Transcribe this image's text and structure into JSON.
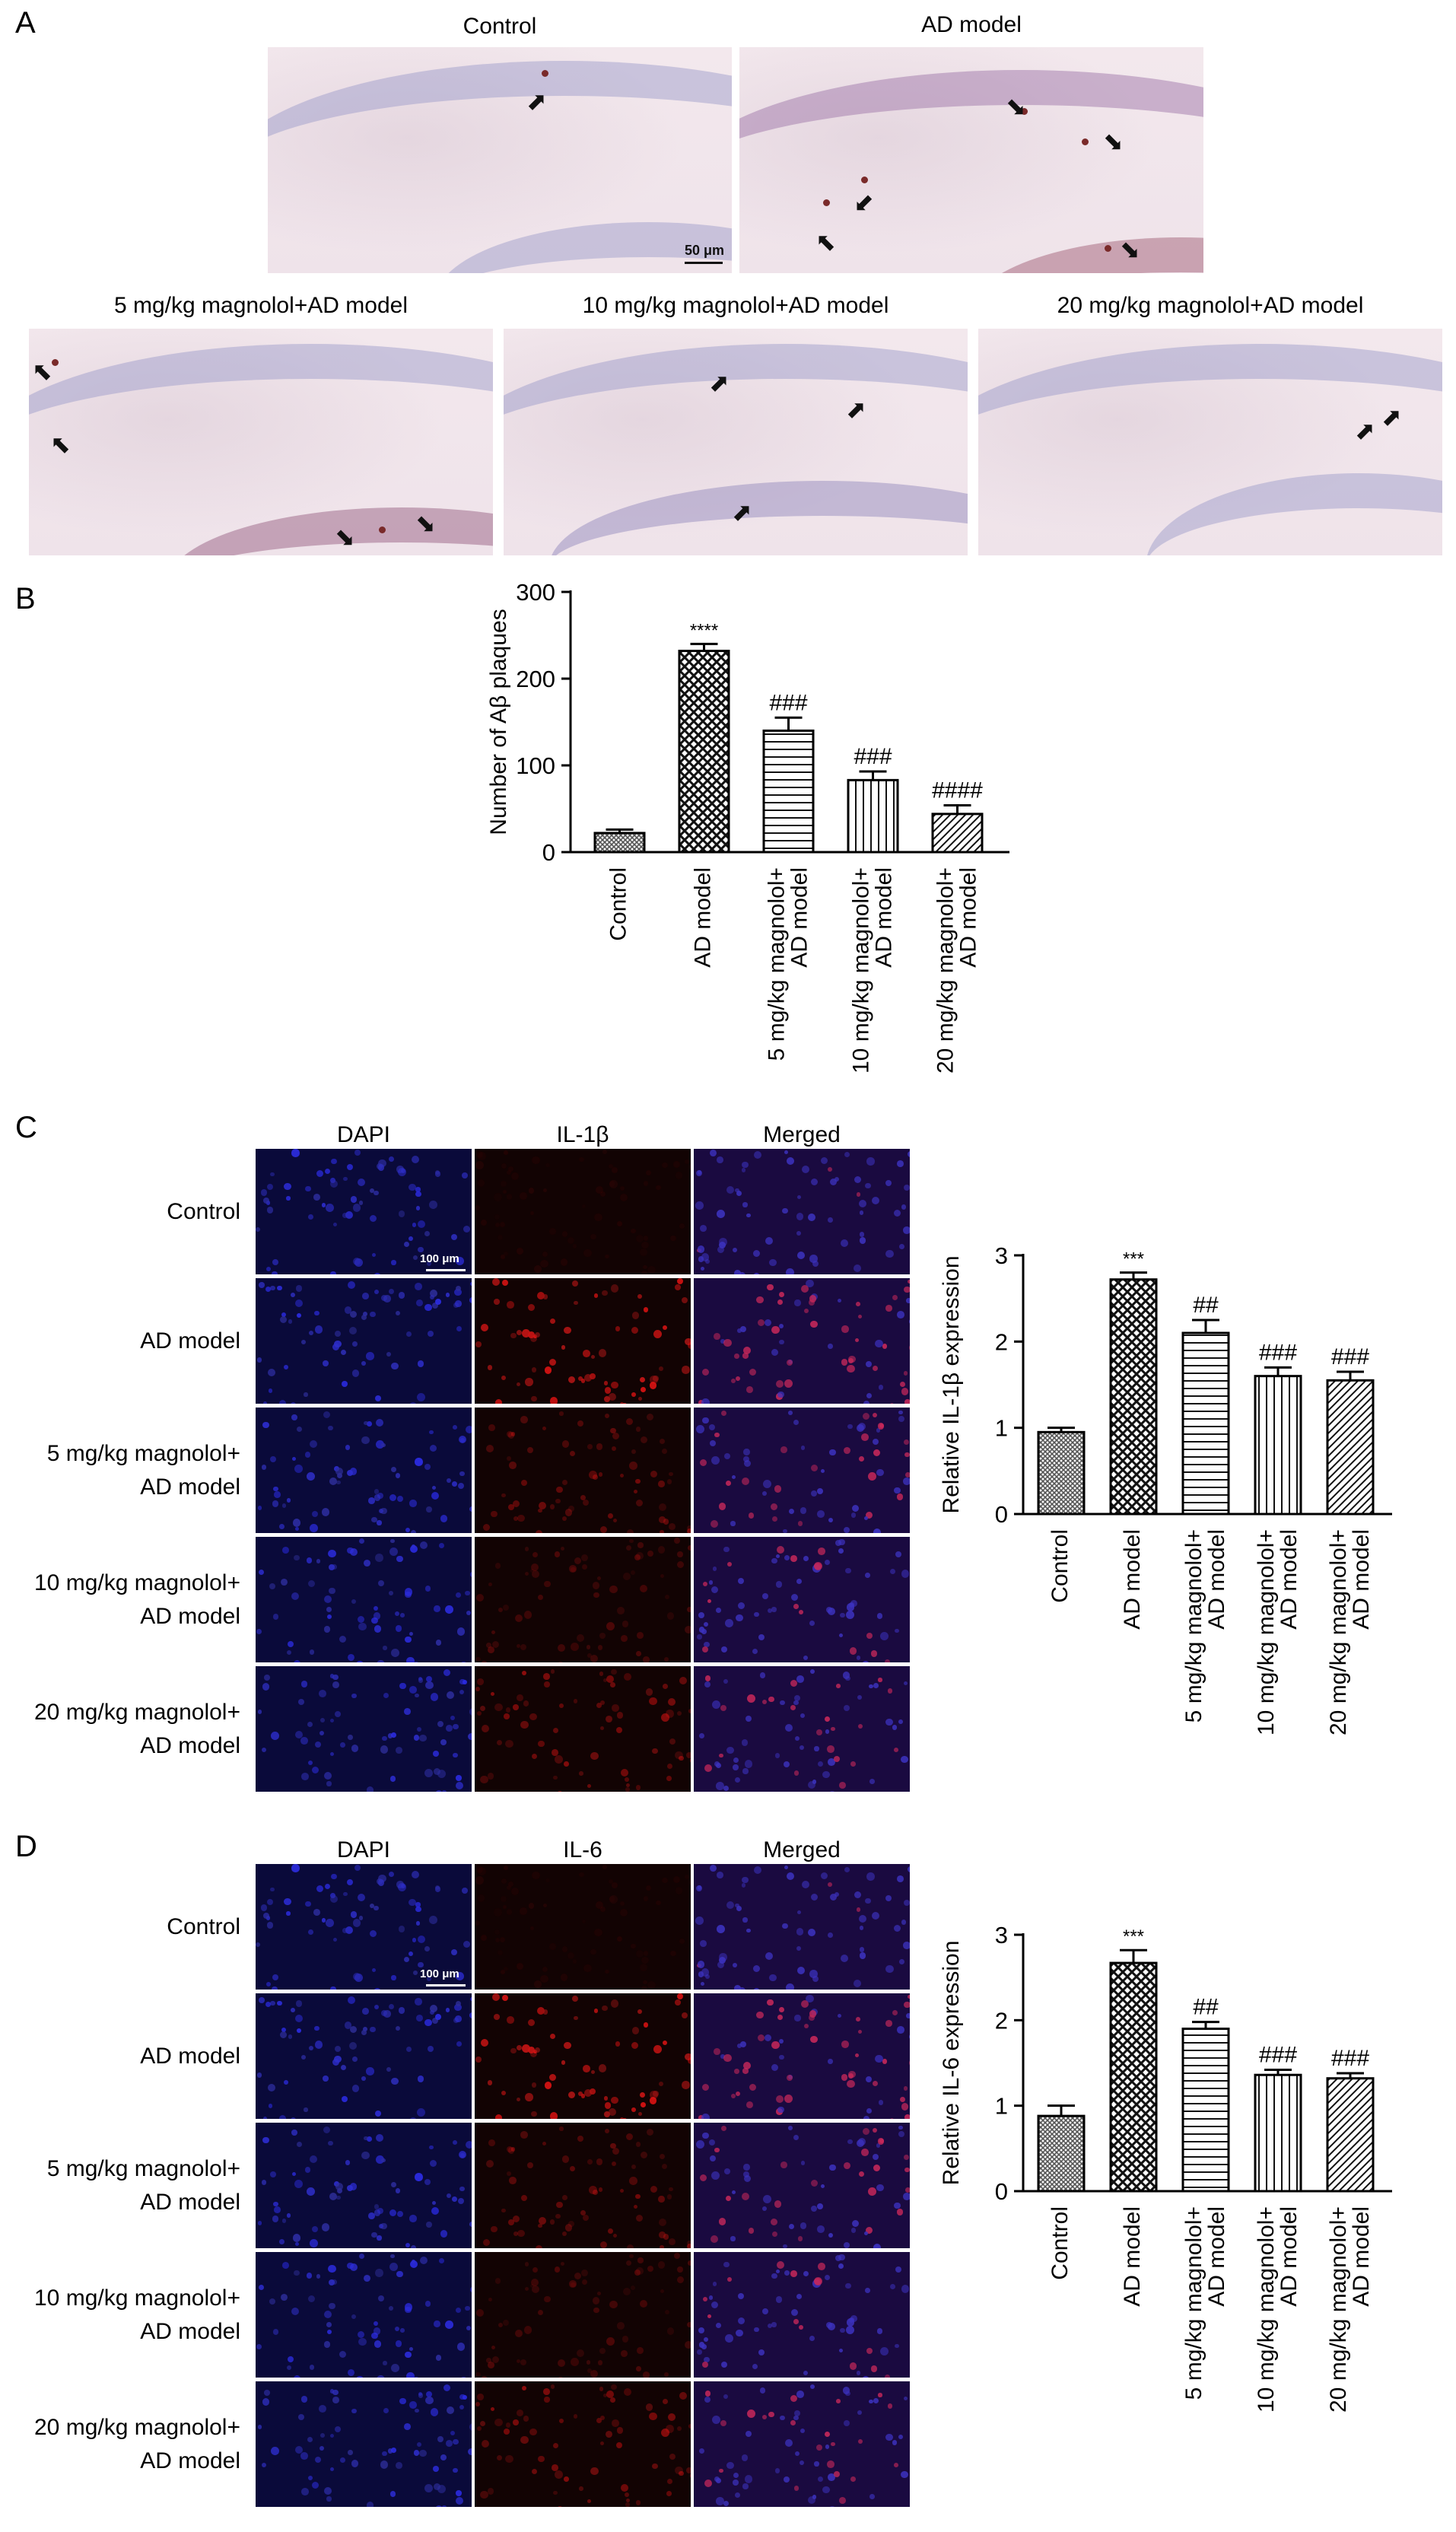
{
  "panel_labels": {
    "A": "A",
    "B": "B",
    "C": "C",
    "D": "D"
  },
  "panel_a": {
    "titles": [
      "Control",
      "AD model",
      "5 mg/kg magnolol+AD model",
      "10 mg/kg magnolol+AD model",
      "20 mg/kg magnolol+AD model"
    ],
    "scale_bar": "50 μm"
  },
  "panel_c": {
    "col_titles": [
      "DAPI",
      "IL-1β",
      "Merged"
    ],
    "row_labels": [
      "Control",
      "AD model",
      "5 mg/kg magnolol+ AD model",
      "10 mg/kg magnolol+ AD model",
      "20 mg/kg magnolol+ AD model"
    ],
    "scale_bar": "100 μm"
  },
  "panel_d": {
    "col_titles": [
      "DAPI",
      "IL-6",
      "Merged"
    ],
    "row_labels": [
      "Control",
      "AD model",
      "5 mg/kg magnolol+ AD model",
      "10 mg/kg magnolol+ AD model",
      "20 mg/kg magnolol+ AD model"
    ],
    "scale_bar": "100 μm"
  },
  "colors": {
    "blue_nuclei": "#2b2bd6",
    "red_stain": "#d42020",
    "ihc_band": "#9d9bd0"
  },
  "chart_data": [
    {
      "id": "B",
      "type": "bar",
      "categories": [
        "Control",
        "AD model",
        "5 mg/kg magnolol+\nAD model",
        "10 mg/kg magnolol+\nAD model",
        "20 mg/kg magnolol+\nAD model"
      ],
      "values": [
        22,
        232,
        140,
        83,
        44
      ],
      "errors": [
        4,
        8,
        15,
        10,
        10
      ],
      "annotations": [
        "",
        "****",
        "###",
        "###",
        "####"
      ],
      "ylabel": "Number of Aβ plaques",
      "ylim": [
        0,
        300
      ],
      "yticks": [
        0,
        100,
        200,
        300
      ],
      "patterns": [
        "dense",
        "check",
        "hlines",
        "vlines",
        "diag"
      ]
    },
    {
      "id": "C",
      "type": "bar",
      "categories": [
        "Control",
        "AD model",
        "5 mg/kg magnolol+\nAD model",
        "10 mg/kg magnolol+\nAD model",
        "20 mg/kg magnolol+\nAD model"
      ],
      "values": [
        0.95,
        2.72,
        2.1,
        1.6,
        1.55
      ],
      "errors": [
        0.05,
        0.08,
        0.15,
        0.1,
        0.1
      ],
      "annotations": [
        "",
        "***",
        "##",
        "###",
        "###"
      ],
      "ylabel": "Relative IL-1β expression",
      "ylim": [
        0,
        3
      ],
      "yticks": [
        0,
        1,
        2,
        3
      ],
      "patterns": [
        "dense",
        "check",
        "hlines",
        "vlines",
        "diag"
      ]
    },
    {
      "id": "D",
      "type": "bar",
      "categories": [
        "Control",
        "AD model",
        "5 mg/kg magnolol+\nAD model",
        "10 mg/kg magnolol+\nAD model",
        "20 mg/kg magnolol+\nAD model"
      ],
      "values": [
        0.88,
        2.67,
        1.9,
        1.36,
        1.32
      ],
      "errors": [
        0.12,
        0.15,
        0.08,
        0.06,
        0.06
      ],
      "annotations": [
        "",
        "***",
        "##",
        "###",
        "###"
      ],
      "ylabel": "Relative IL-6 expression",
      "ylim": [
        0,
        3
      ],
      "yticks": [
        0,
        1,
        2,
        3
      ],
      "patterns": [
        "dense",
        "check",
        "hlines",
        "vlines",
        "diag"
      ]
    }
  ]
}
